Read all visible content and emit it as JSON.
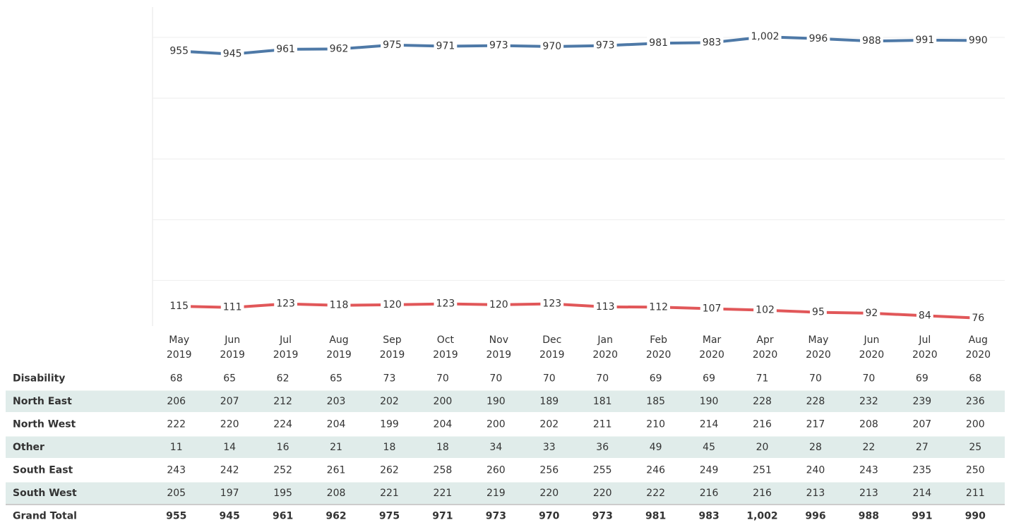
{
  "chart_data": {
    "type": "line",
    "categories": [
      "May 2019",
      "Jun 2019",
      "Jul 2019",
      "Aug 2019",
      "Sep 2019",
      "Oct 2019",
      "Nov 2019",
      "Dec 2019",
      "Jan 2020",
      "Feb 2020",
      "Mar 2020",
      "Apr 2020",
      "May 2020",
      "Jun 2020",
      "Jul 2020",
      "Aug 2020"
    ],
    "series": [
      {
        "color": "#4e79a7",
        "values": [
          955,
          945,
          961,
          962,
          975,
          971,
          973,
          970,
          973,
          981,
          983,
          1002,
          996,
          988,
          991,
          990
        ],
        "value_labels": [
          "955",
          "945",
          "961",
          "962",
          "975",
          "971",
          "973",
          "970",
          "973",
          "981",
          "983",
          "1,002",
          "996",
          "988",
          "991",
          "990"
        ]
      },
      {
        "color": "#e15759",
        "values": [
          115,
          111,
          123,
          118,
          120,
          123,
          120,
          123,
          113,
          112,
          107,
          102,
          95,
          92,
          84,
          76
        ]
      }
    ],
    "ylim": [
      50,
      1100
    ],
    "yticks": [
      200,
      400,
      600,
      800,
      1000
    ],
    "grid": true
  },
  "table": {
    "rows": [
      {
        "label": "Disability",
        "values": [
          68,
          65,
          62,
          65,
          73,
          70,
          70,
          70,
          70,
          69,
          69,
          71,
          70,
          70,
          69,
          68
        ]
      },
      {
        "label": "North East",
        "values": [
          206,
          207,
          212,
          203,
          202,
          200,
          190,
          189,
          181,
          185,
          190,
          228,
          228,
          232,
          239,
          236
        ]
      },
      {
        "label": "North West",
        "values": [
          222,
          220,
          224,
          204,
          199,
          204,
          200,
          202,
          211,
          210,
          214,
          216,
          217,
          208,
          207,
          200
        ]
      },
      {
        "label": "Other",
        "values": [
          11,
          14,
          16,
          21,
          18,
          18,
          34,
          33,
          36,
          49,
          45,
          20,
          28,
          22,
          27,
          25
        ]
      },
      {
        "label": "South East",
        "values": [
          243,
          242,
          252,
          261,
          262,
          258,
          260,
          256,
          255,
          246,
          249,
          251,
          240,
          243,
          235,
          250
        ]
      },
      {
        "label": "South West",
        "values": [
          205,
          197,
          195,
          208,
          221,
          221,
          219,
          220,
          220,
          222,
          216,
          216,
          213,
          213,
          214,
          211
        ]
      },
      {
        "label": "Grand Total",
        "values": [
          955,
          945,
          961,
          962,
          975,
          971,
          973,
          970,
          973,
          981,
          983,
          1002,
          996,
          988,
          991,
          990
        ],
        "value_labels": [
          "955",
          "945",
          "961",
          "962",
          "975",
          "971",
          "973",
          "970",
          "973",
          "981",
          "983",
          "1,002",
          "996",
          "988",
          "991",
          "990"
        ]
      }
    ]
  }
}
